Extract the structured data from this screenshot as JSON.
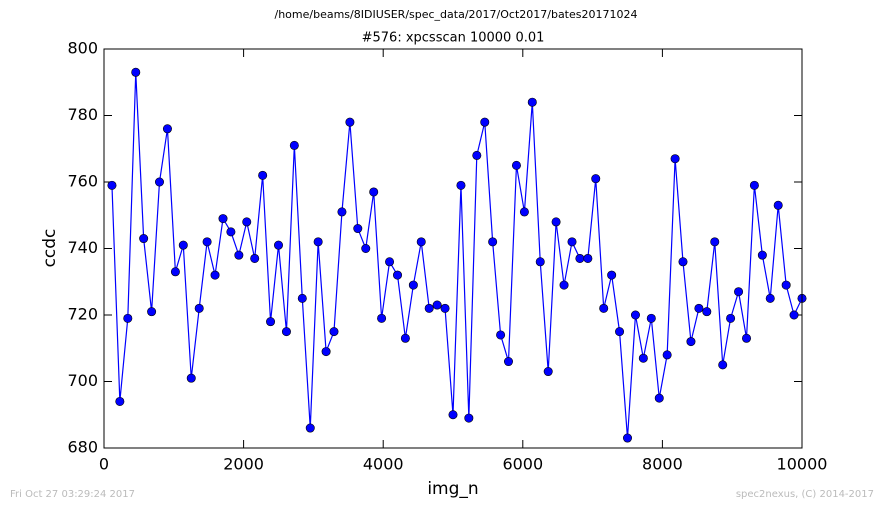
{
  "chart_data": {
    "type": "line",
    "suptitle": "/home/beams/8IDIUSER/spec_data/2017/Oct2017/bates20171024",
    "title": "#576: xpcsscan 10000 0.01",
    "x_label": "img_n",
    "y_label": "ccdc",
    "footer_left": "Fri Oct 27 03:29:24 2017",
    "footer_right": "spec2nexus, (C) 2014-2017",
    "color": "#0000ff",
    "marker": "circle",
    "grid": false,
    "xlim": [
      0,
      10000
    ],
    "xticks": [
      0,
      2000,
      4000,
      6000,
      8000,
      10000
    ],
    "ylim": [
      680,
      800
    ],
    "yticks": [
      680,
      700,
      720,
      740,
      760,
      780,
      800
    ],
    "x": [
      114,
      227,
      341,
      455,
      568,
      682,
      795,
      909,
      1023,
      1136,
      1250,
      1364,
      1477,
      1591,
      1705,
      1818,
      1932,
      2045,
      2159,
      2273,
      2386,
      2500,
      2614,
      2727,
      2841,
      2955,
      3068,
      3182,
      3295,
      3409,
      3523,
      3636,
      3750,
      3864,
      3977,
      4091,
      4205,
      4318,
      4432,
      4545,
      4659,
      4773,
      4886,
      5000,
      5114,
      5227,
      5341,
      5455,
      5568,
      5682,
      5795,
      5909,
      6023,
      6136,
      6250,
      6364,
      6477,
      6591,
      6705,
      6818,
      6932,
      7045,
      7159,
      7273,
      7386,
      7500,
      7614,
      7727,
      7841,
      7955,
      8068,
      8182,
      8295,
      8409,
      8523,
      8636,
      8750,
      8864,
      8977,
      9091,
      9205,
      9318,
      9432,
      9545,
      9659,
      9773,
      9886,
      10000
    ],
    "values": [
      759,
      694,
      719,
      793,
      743,
      721,
      760,
      776,
      733,
      741,
      701,
      722,
      742,
      732,
      749,
      745,
      738,
      748,
      737,
      762,
      718,
      741,
      715,
      771,
      725,
      686,
      742,
      709,
      715,
      751,
      778,
      746,
      740,
      757,
      719,
      736,
      732,
      713,
      729,
      742,
      722,
      723,
      722,
      690,
      759,
      689,
      768,
      778,
      742,
      714,
      706,
      765,
      751,
      784,
      736,
      703,
      748,
      729,
      742,
      737,
      737,
      761,
      722,
      732,
      715,
      683,
      720,
      707,
      719,
      695,
      708,
      767,
      736,
      712,
      722,
      721,
      742,
      705,
      719,
      727,
      713,
      759,
      738,
      725,
      753,
      729,
      720,
      725
    ]
  }
}
